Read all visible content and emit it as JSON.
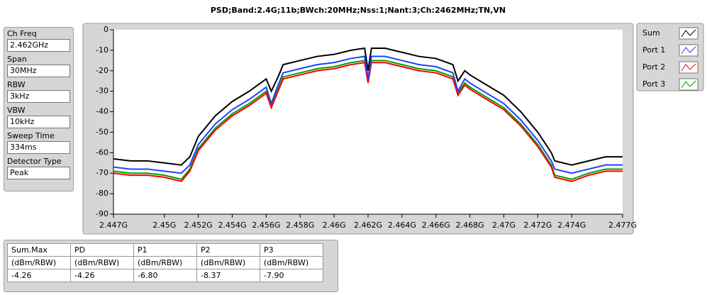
{
  "chart_data": {
    "type": "line",
    "title": "PSD;Band:2.4G;11b;BWch:20MHz;Nss:1;Nant:3;Ch:2462MHz;TN,VN",
    "x": [
      2.447,
      2.448,
      2.449,
      2.45,
      2.451,
      2.4515,
      2.452,
      2.453,
      2.454,
      2.455,
      2.456,
      2.4563,
      2.4567,
      2.457,
      2.458,
      2.459,
      2.46,
      2.461,
      2.4618,
      2.462,
      2.4622,
      2.463,
      2.464,
      2.465,
      2.466,
      2.467,
      2.4673,
      2.4677,
      2.468,
      2.469,
      2.47,
      2.471,
      2.472,
      2.4728,
      2.473,
      2.474,
      2.475,
      2.476,
      2.477
    ],
    "series": [
      {
        "name": "Sum",
        "color": "#000000",
        "values": [
          -63,
          -64,
          -64,
          -65,
          -66,
          -62,
          -52,
          -42,
          -35,
          -30,
          -24,
          -30,
          -23,
          -17,
          -15,
          -13,
          -12,
          -10,
          -9,
          -20,
          -9,
          -9,
          -11,
          -13,
          -14,
          -17,
          -25,
          -20,
          -22,
          -27,
          -32,
          -40,
          -50,
          -60,
          -64,
          -66,
          -64,
          -62,
          -62
        ]
      },
      {
        "name": "Port 1",
        "color": "#2040ff",
        "values": [
          -67,
          -68,
          -68,
          -69,
          -70,
          -66,
          -56,
          -46,
          -39,
          -34,
          -28,
          -36,
          -27,
          -21,
          -19,
          -17,
          -16,
          -14,
          -13,
          -24,
          -13,
          -13,
          -15,
          -17,
          -18,
          -21,
          -30,
          -24,
          -26,
          -31,
          -36,
          -44,
          -54,
          -64,
          -68,
          -70,
          -68,
          -66,
          -66
        ]
      },
      {
        "name": "Port 2",
        "color": "#ff0000",
        "values": [
          -70,
          -71,
          -71,
          -72,
          -74,
          -69,
          -59,
          -49,
          -42,
          -37,
          -31,
          -38,
          -30,
          -24,
          -22,
          -20,
          -19,
          -17,
          -16,
          -26,
          -16,
          -16,
          -18,
          -20,
          -21,
          -24,
          -32,
          -27,
          -29,
          -34,
          -39,
          -47,
          -57,
          -67,
          -72,
          -74,
          -71,
          -69,
          -69
        ]
      },
      {
        "name": "Port 3",
        "color": "#00a000",
        "values": [
          -69,
          -70,
          -70,
          -71,
          -73,
          -68,
          -58,
          -48,
          -41,
          -36,
          -30,
          -37,
          -29,
          -23,
          -21,
          -19,
          -18,
          -16,
          -15,
          -25,
          -15,
          -15,
          -17,
          -19,
          -20,
          -23,
          -31,
          -26,
          -28,
          -33,
          -38,
          -46,
          -56,
          -66,
          -71,
          -73,
          -70,
          -68,
          -68
        ]
      }
    ],
    "xlim": [
      2.447,
      2.477
    ],
    "xticks": [
      {
        "value": 2.447,
        "label": "2.447G"
      },
      {
        "value": 2.45,
        "label": "2.45G"
      },
      {
        "value": 2.452,
        "label": "2.452G"
      },
      {
        "value": 2.454,
        "label": "2.454G"
      },
      {
        "value": 2.456,
        "label": "2.456G"
      },
      {
        "value": 2.458,
        "label": "2.458G"
      },
      {
        "value": 2.46,
        "label": "2.46G"
      },
      {
        "value": 2.462,
        "label": "2.462G"
      },
      {
        "value": 2.464,
        "label": "2.464G"
      },
      {
        "value": 2.466,
        "label": "2.466G"
      },
      {
        "value": 2.468,
        "label": "2.468G"
      },
      {
        "value": 2.47,
        "label": "2.47G"
      },
      {
        "value": 2.472,
        "label": "2.472G"
      },
      {
        "value": 2.474,
        "label": "2.474G"
      },
      {
        "value": 2.477,
        "label": "2.477G"
      }
    ],
    "ylim": [
      -90,
      0
    ],
    "yticks": [
      0,
      -10,
      -20,
      -30,
      -40,
      -50,
      -60,
      -70,
      -80,
      -90
    ],
    "grid": false
  },
  "settings": [
    {
      "label": "Ch Freq",
      "value": "2.462GHz"
    },
    {
      "label": "Span",
      "value": "30MHz"
    },
    {
      "label": "RBW",
      "value": "3kHz"
    },
    {
      "label": "VBW",
      "value": "10kHz"
    },
    {
      "label": "Sweep Time",
      "value": "334ms"
    },
    {
      "label": "Detector Type",
      "value": "Peak"
    }
  ],
  "table": {
    "headers": [
      "Sum.Max",
      "PD",
      "P1",
      "P2",
      "P3"
    ],
    "rows": [
      [
        "(dBm/RBW)",
        "(dBm/RBW)",
        "(dBm/RBW)",
        "(dBm/RBW)",
        "(dBm/RBW)"
      ],
      [
        "-4.26",
        "-4.26",
        "-6.80",
        "-8.37",
        "-7.90"
      ]
    ]
  }
}
